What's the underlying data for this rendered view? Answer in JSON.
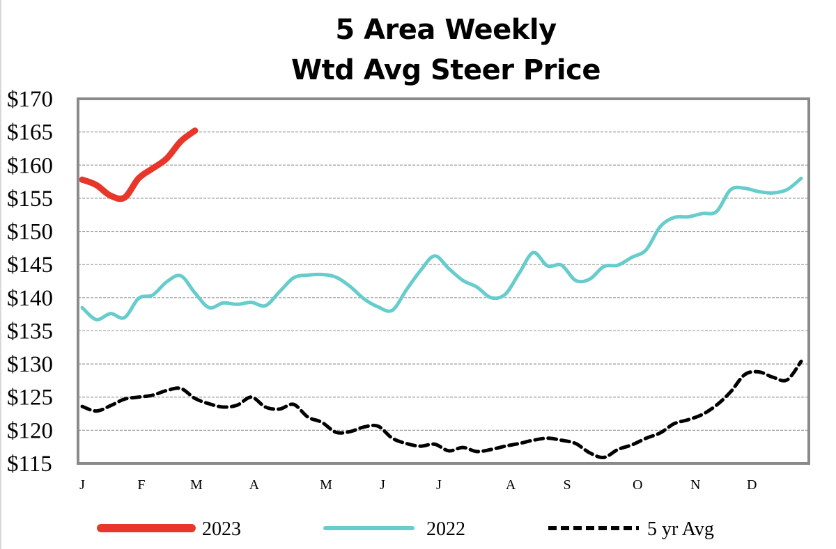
{
  "chart_data": {
    "type": "line",
    "title": "5 Area Weekly Wtd Avg Steer Price",
    "title_lines": [
      "5 Area Weekly",
      "Wtd Avg Steer Price"
    ],
    "xlabel": "",
    "ylabel": "",
    "ylim": [
      115,
      170
    ],
    "yticks": [
      115,
      120,
      125,
      130,
      135,
      140,
      145,
      150,
      155,
      160,
      165,
      170
    ],
    "ytick_labels": [
      "$115",
      "$120",
      "$125",
      "$130",
      "$135",
      "$140",
      "$145",
      "$150",
      "$155",
      "$160",
      "$165",
      "$170"
    ],
    "x_unit": "week",
    "xlim": [
      1,
      52
    ],
    "xtick_labels": [
      "J",
      "F",
      "M",
      "A",
      "M",
      "J",
      "J",
      "A",
      "S",
      "O",
      "N",
      "D"
    ],
    "xtick_weeks": [
      1,
      5.2,
      9.1,
      13.2,
      18.3,
      22.3,
      26.3,
      31.4,
      35.4,
      40.4,
      44.5,
      48.5
    ],
    "grid": true,
    "grid_style": "dashed-horizontal",
    "legend_position": "bottom",
    "series": [
      {
        "name": "2023",
        "color": "#e8372a",
        "style": "solid-thick",
        "values": [
          157.8,
          157.0,
          155.4,
          155.1,
          158.0,
          159.5,
          161.0,
          163.6,
          165.2
        ]
      },
      {
        "name": "2022",
        "color": "#66cccc",
        "style": "solid",
        "values": [
          138.5,
          136.7,
          137.6,
          137.0,
          139.9,
          140.4,
          142.4,
          143.3,
          140.7,
          138.5,
          139.2,
          139.0,
          139.3,
          138.8,
          140.9,
          143.0,
          143.4,
          143.5,
          143.1,
          141.7,
          139.8,
          138.6,
          138.1,
          141.2,
          144.1,
          146.3,
          144.4,
          142.6,
          141.6,
          140.0,
          140.5,
          143.7,
          146.8,
          144.8,
          144.9,
          142.6,
          142.8,
          144.7,
          144.9,
          146.1,
          147.2,
          150.7,
          152.1,
          152.2,
          152.7,
          153.0,
          156.3,
          156.5,
          156.0,
          155.8,
          156.3,
          158.0
        ]
      },
      {
        "name": "5 yr Avg",
        "color": "#000000",
        "style": "dashed",
        "values": [
          123.6,
          122.9,
          123.7,
          124.7,
          125.0,
          125.3,
          126.0,
          126.3,
          124.8,
          124.0,
          123.5,
          123.8,
          125.0,
          123.5,
          123.2,
          123.9,
          122.0,
          121.2,
          119.7,
          119.8,
          120.5,
          120.6,
          118.8,
          118.0,
          117.6,
          117.9,
          116.9,
          117.4,
          116.8,
          117.1,
          117.6,
          118.0,
          118.5,
          118.8,
          118.5,
          118.0,
          116.6,
          115.9,
          117.1,
          117.8,
          118.8,
          119.6,
          121.0,
          121.6,
          122.4,
          123.8,
          125.8,
          128.4,
          128.8,
          128.0,
          127.6,
          130.4
        ]
      }
    ]
  }
}
